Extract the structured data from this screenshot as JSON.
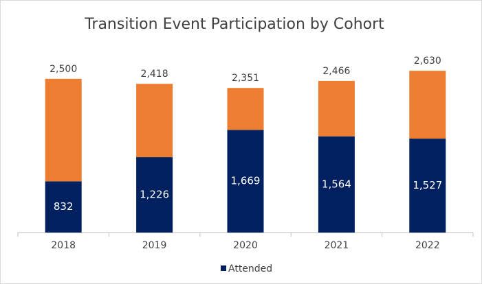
{
  "chart_data": {
    "type": "stacked_bar",
    "title": "Transition Event Participation by Cohort",
    "categories": [
      "2018",
      "2019",
      "2020",
      "2021",
      "2022"
    ],
    "series": [
      {
        "name": "Attended",
        "color": "#002060",
        "values": [
          832,
          1226,
          1669,
          1564,
          1527
        ],
        "value_labels": [
          "832",
          "1,226",
          "1,669",
          "1,564",
          "1,527"
        ]
      },
      {
        "color": "#ed7d31",
        "values": [
          1668,
          1192,
          682,
          902,
          1103
        ]
      }
    ],
    "totals": [
      2500,
      2418,
      2351,
      2466,
      2630
    ],
    "total_labels": [
      "2,500",
      "2,418",
      "2,351",
      "2,466",
      "2,630"
    ],
    "ylim": [
      0,
      3000
    ],
    "legend": "bottom"
  }
}
